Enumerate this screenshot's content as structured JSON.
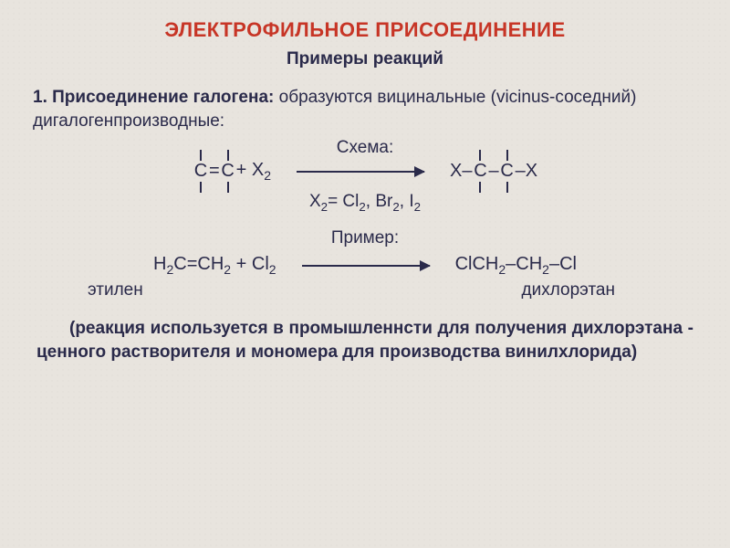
{
  "title": "ЭЛЕКТРОФИЛЬНОЕ   ПРИСОЕДИНЕНИЕ",
  "subtitle": "Примеры реакций",
  "section1": {
    "lead": "1. Присоединение галогена:",
    "rest": " образуются вицинальные (vicinus-соседний) дигалогенпроизводные:"
  },
  "scheme": {
    "label": "Схема:",
    "left_plus": "  +  X",
    "left_sub": "2",
    "where_prefix": "X",
    "where_sub1": "2",
    "where_eq": "= Cl",
    "where_sub2": "2",
    "where_c1": ", Br",
    "where_sub3": "2",
    "where_c2": ", I",
    "where_sub4": "2",
    "product_x1": "X–",
    "product_dash": "–",
    "product_x2": "–X"
  },
  "example": {
    "label": "Пример:",
    "lhs_html": "H<sub>2</sub>C=CH<sub>2</sub>  +  Cl<sub>2</sub>",
    "rhs_html": "ClCH<sub>2</sub>–CH<sub>2</sub>–Cl",
    "name_left": "этилен",
    "name_right": "дихлорэтан"
  },
  "note": "(реакция используется в промышленнсти для получения дихлорэтана - ценного растворителя и мономера для производства винилхлорида)",
  "colors": {
    "title": "#c73526",
    "text": "#2a2a4a",
    "background": "#e8e4de"
  },
  "fonts": {
    "title_size": 22,
    "body_size": 19
  }
}
